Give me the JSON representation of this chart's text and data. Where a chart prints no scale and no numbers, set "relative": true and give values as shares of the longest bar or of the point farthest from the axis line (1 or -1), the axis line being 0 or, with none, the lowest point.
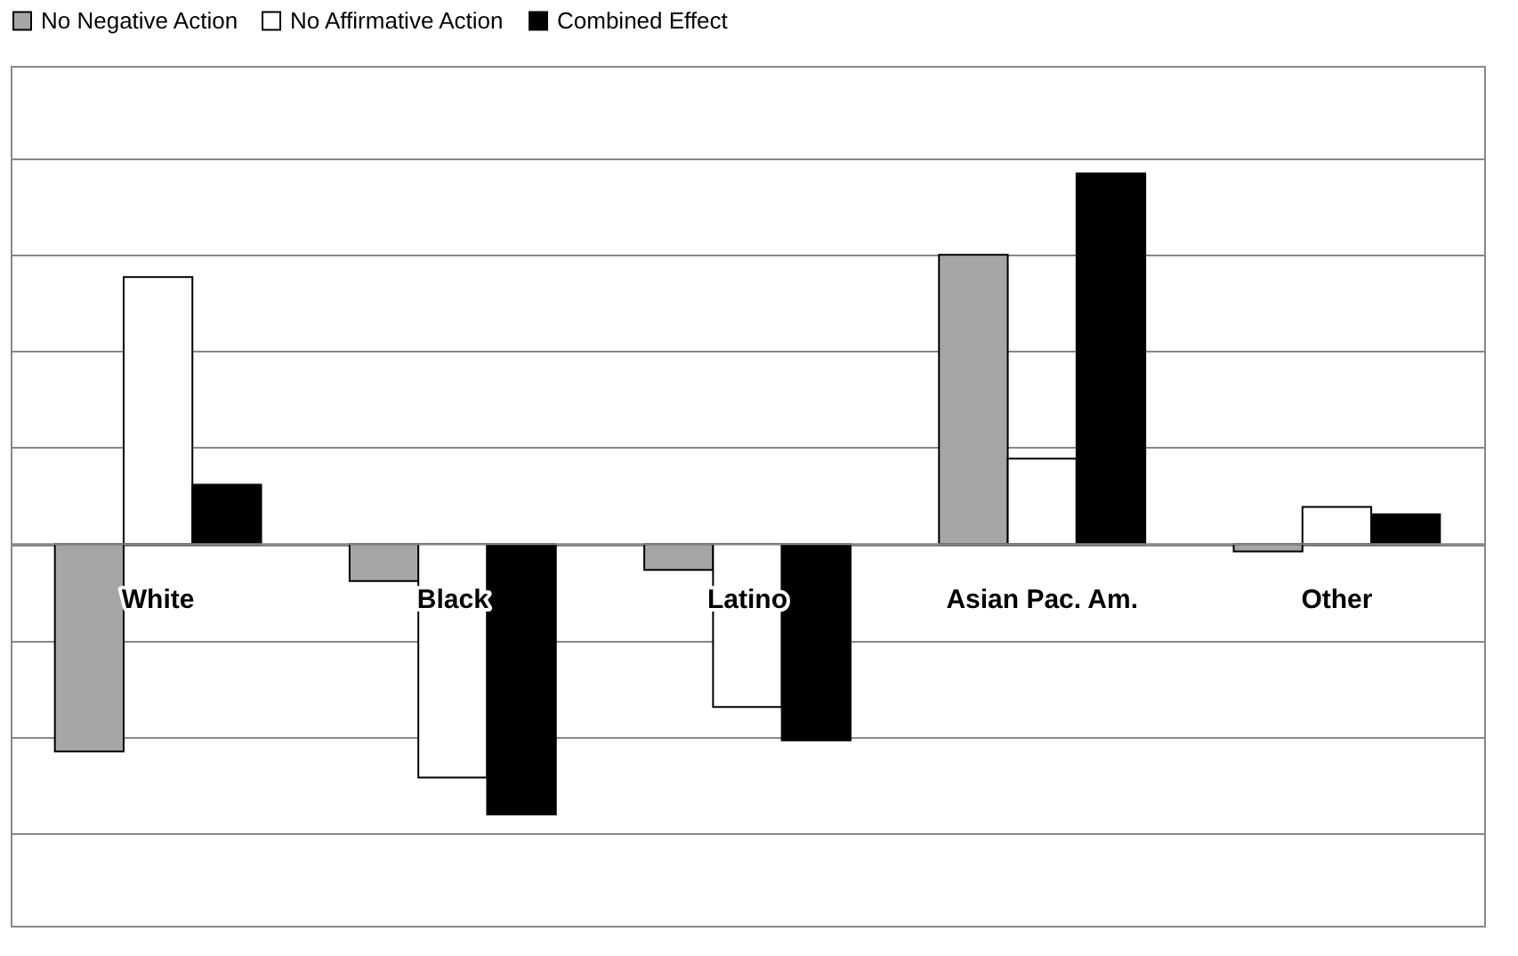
{
  "chart_data": {
    "type": "bar",
    "relative": true,
    "categories": [
      "White",
      "Black",
      "Latino",
      "Asian Pac. Am.",
      "Other"
    ],
    "series": [
      {
        "name": "No Negative Action",
        "color": "#a6a6a6",
        "values": [
          -0.56,
          -0.1,
          -0.07,
          0.78,
          -0.02
        ]
      },
      {
        "name": "No Affirmative Action",
        "color": "#ffffff",
        "values": [
          0.72,
          -0.63,
          -0.44,
          0.23,
          0.1
        ]
      },
      {
        "name": "Combined Effect",
        "color": "#000000",
        "values": [
          0.16,
          -0.73,
          -0.53,
          1,
          0.08
        ]
      }
    ],
    "grid": "y",
    "legend": "top"
  }
}
